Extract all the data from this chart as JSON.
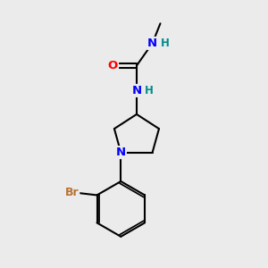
{
  "background_color": "#ebebeb",
  "atom_colors": {
    "C": "#000000",
    "N": "#0000ff",
    "O": "#ff0000",
    "Br": "#b87333",
    "H": "#008b8b"
  },
  "bond_color": "#000000",
  "bond_width": 1.5,
  "figsize": [
    3.0,
    3.0
  ],
  "dpi": 100
}
